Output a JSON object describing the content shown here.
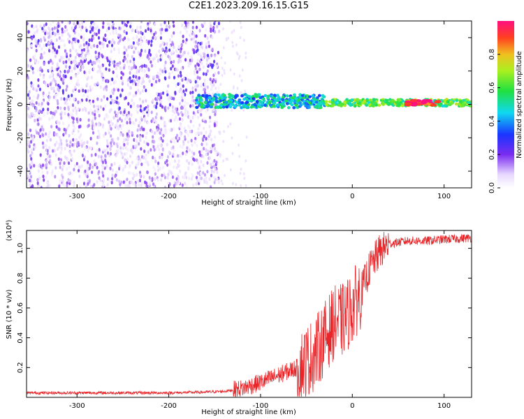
{
  "page": {
    "title": "C2E1.2023.209.16.15.G15"
  },
  "chart_data": [
    {
      "type": "heatmap",
      "title": "C2E1.2023.209.16.15.G15",
      "xlabel": "Height of straight line (km)",
      "ylabel": "Frequency (Hz)",
      "xlim": [
        -355,
        130
      ],
      "ylim": [
        -50,
        50
      ],
      "xticks": [
        -300,
        -200,
        -100,
        0,
        100
      ],
      "yticks": [
        -40,
        -20,
        0,
        20,
        40
      ],
      "colorbar": {
        "label": "Normalized spectral amplitude",
        "range": [
          0.0,
          1.0
        ],
        "ticks": [
          0.0,
          0.2,
          0.4,
          0.6,
          0.8
        ]
      },
      "regions": [
        {
          "x": [
            -355,
            -145
          ],
          "freq_range": [
            -50,
            50
          ],
          "amplitude": 0.1,
          "description_level": "scattered low"
        },
        {
          "x": [
            -170,
            -30
          ],
          "freq_center": 2,
          "freq_width": 8,
          "amplitude": 0.45
        },
        {
          "x": [
            -30,
            130
          ],
          "freq_center": 1,
          "freq_width": 4,
          "amplitude": 0.6
        },
        {
          "x": [
            60,
            95
          ],
          "freq_center": 1,
          "freq_width": 3,
          "amplitude": 0.95
        }
      ],
      "grid": false
    },
    {
      "type": "line",
      "xlabel": "Height of straight line (km)",
      "ylabel": "SNR (10 * v/v)",
      "y_multiplier": "(x10⁴)",
      "xlim": [
        -355,
        130
      ],
      "ylim": [
        0,
        1.12
      ],
      "xticks": [
        -300,
        -200,
        -100,
        0,
        100
      ],
      "yticks": [
        0.2,
        0.4,
        0.6,
        0.8,
        1.0
      ],
      "series": [
        {
          "color": "#e8262a",
          "x": [
            -355,
            -300,
            -250,
            -200,
            -160,
            -140,
            -120,
            -100,
            -80,
            -60,
            -50,
            -40,
            -30,
            -20,
            -10,
            0,
            10,
            20,
            30,
            40,
            60,
            80,
            100,
            130
          ],
          "y": [
            0.03,
            0.03,
            0.03,
            0.03,
            0.035,
            0.04,
            0.06,
            0.1,
            0.15,
            0.2,
            0.24,
            0.3,
            0.4,
            0.5,
            0.52,
            0.6,
            0.72,
            0.88,
            0.98,
            1.03,
            1.05,
            1.05,
            1.06,
            1.07
          ]
        }
      ],
      "grid": false
    }
  ]
}
